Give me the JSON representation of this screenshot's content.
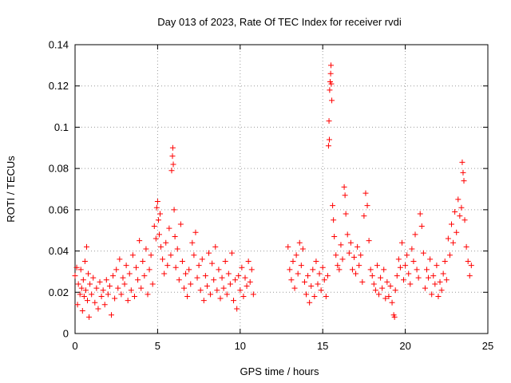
{
  "chart_data": {
    "type": "scatter",
    "title": "Day 013 of 2023, Rate Of TEC Index for receiver rvdi",
    "xlabel": "GPS time / hours",
    "ylabel": "ROTI / TECUs",
    "xlim": [
      0,
      25
    ],
    "ylim": [
      0,
      0.14
    ],
    "xticks": [
      "0",
      "5",
      "10",
      "15",
      "20",
      "25"
    ],
    "yticks": [
      "0",
      "0.02",
      "0.04",
      "0.06",
      "0.08",
      "0.1",
      "0.12",
      "0.14"
    ],
    "grid": true,
    "marker": "+",
    "color": "#ff0000",
    "series": [
      {
        "points": [
          [
            0.0,
            0.028
          ],
          [
            0.1,
            0.032
          ],
          [
            0.15,
            0.014
          ],
          [
            0.2,
            0.024
          ],
          [
            0.3,
            0.019
          ],
          [
            0.35,
            0.031
          ],
          [
            0.4,
            0.022
          ],
          [
            0.45,
            0.011
          ],
          [
            0.5,
            0.026
          ],
          [
            0.55,
            0.018
          ],
          [
            0.6,
            0.035
          ],
          [
            0.65,
            0.021
          ],
          [
            0.7,
            0.042
          ],
          [
            0.75,
            0.016
          ],
          [
            0.8,
            0.029
          ],
          [
            0.85,
            0.008
          ],
          [
            0.9,
            0.024
          ],
          [
            1.0,
            0.019
          ],
          [
            1.1,
            0.027
          ],
          [
            1.2,
            0.015
          ],
          [
            1.3,
            0.022
          ],
          [
            1.4,
            0.012
          ],
          [
            1.5,
            0.025
          ],
          [
            1.6,
            0.018
          ],
          [
            1.7,
            0.021
          ],
          [
            1.8,
            0.014
          ],
          [
            1.9,
            0.026
          ],
          [
            2.0,
            0.019
          ],
          [
            2.1,
            0.023
          ],
          [
            2.2,
            0.009
          ],
          [
            2.3,
            0.028
          ],
          [
            2.4,
            0.017
          ],
          [
            2.5,
            0.031
          ],
          [
            2.6,
            0.022
          ],
          [
            2.7,
            0.036
          ],
          [
            2.8,
            0.019
          ],
          [
            2.9,
            0.027
          ],
          [
            3.0,
            0.024
          ],
          [
            3.1,
            0.033
          ],
          [
            3.2,
            0.016
          ],
          [
            3.3,
            0.029
          ],
          [
            3.4,
            0.021
          ],
          [
            3.5,
            0.038
          ],
          [
            3.6,
            0.018
          ],
          [
            3.7,
            0.032
          ],
          [
            3.8,
            0.026
          ],
          [
            3.9,
            0.045
          ],
          [
            4.0,
            0.022
          ],
          [
            4.1,
            0.035
          ],
          [
            4.2,
            0.028
          ],
          [
            4.3,
            0.041
          ],
          [
            4.4,
            0.019
          ],
          [
            4.5,
            0.031
          ],
          [
            4.6,
            0.038
          ],
          [
            4.7,
            0.024
          ],
          [
            4.8,
            0.052
          ],
          [
            4.9,
            0.046
          ],
          [
            4.95,
            0.061
          ],
          [
            5.0,
            0.064
          ],
          [
            5.05,
            0.055
          ],
          [
            5.1,
            0.048
          ],
          [
            5.15,
            0.058
          ],
          [
            5.2,
            0.042
          ],
          [
            5.3,
            0.036
          ],
          [
            5.4,
            0.029
          ],
          [
            5.5,
            0.044
          ],
          [
            5.6,
            0.033
          ],
          [
            5.7,
            0.051
          ],
          [
            5.8,
            0.038
          ],
          [
            5.85,
            0.079
          ],
          [
            5.9,
            0.086
          ],
          [
            5.92,
            0.09
          ],
          [
            5.95,
            0.082
          ],
          [
            6.0,
            0.06
          ],
          [
            6.05,
            0.047
          ],
          [
            6.1,
            0.032
          ],
          [
            6.2,
            0.041
          ],
          [
            6.3,
            0.026
          ],
          [
            6.4,
            0.053
          ],
          [
            6.5,
            0.035
          ],
          [
            6.6,
            0.022
          ],
          [
            6.7,
            0.029
          ],
          [
            6.8,
            0.018
          ],
          [
            6.9,
            0.031
          ],
          [
            7.0,
            0.024
          ],
          [
            7.1,
            0.044
          ],
          [
            7.2,
            0.038
          ],
          [
            7.3,
            0.049
          ],
          [
            7.4,
            0.027
          ],
          [
            7.5,
            0.033
          ],
          [
            7.6,
            0.021
          ],
          [
            7.7,
            0.036
          ],
          [
            7.8,
            0.016
          ],
          [
            7.9,
            0.028
          ],
          [
            8.0,
            0.023
          ],
          [
            8.1,
            0.039
          ],
          [
            8.2,
            0.019
          ],
          [
            8.3,
            0.034
          ],
          [
            8.4,
            0.026
          ],
          [
            8.5,
            0.042
          ],
          [
            8.6,
            0.021
          ],
          [
            8.7,
            0.031
          ],
          [
            8.8,
            0.017
          ],
          [
            8.9,
            0.027
          ],
          [
            9.0,
            0.022
          ],
          [
            9.1,
            0.035
          ],
          [
            9.2,
            0.019
          ],
          [
            9.3,
            0.029
          ],
          [
            9.4,
            0.024
          ],
          [
            9.5,
            0.039
          ],
          [
            9.6,
            0.016
          ],
          [
            9.7,
            0.026
          ],
          [
            9.8,
            0.012
          ],
          [
            9.9,
            0.028
          ],
          [
            10.0,
            0.021
          ],
          [
            10.1,
            0.032
          ],
          [
            10.2,
            0.018
          ],
          [
            10.3,
            0.027
          ],
          [
            10.4,
            0.023
          ],
          [
            10.5,
            0.035
          ],
          [
            10.6,
            0.025
          ],
          [
            10.7,
            0.031
          ],
          [
            10.8,
            0.019
          ],
          [
            12.9,
            0.042
          ],
          [
            13.0,
            0.031
          ],
          [
            13.1,
            0.026
          ],
          [
            13.2,
            0.035
          ],
          [
            13.3,
            0.022
          ],
          [
            13.4,
            0.038
          ],
          [
            13.5,
            0.029
          ],
          [
            13.6,
            0.044
          ],
          [
            13.7,
            0.033
          ],
          [
            13.8,
            0.041
          ],
          [
            13.9,
            0.025
          ],
          [
            14.0,
            0.019
          ],
          [
            14.1,
            0.028
          ],
          [
            14.2,
            0.015
          ],
          [
            14.3,
            0.023
          ],
          [
            14.4,
            0.031
          ],
          [
            14.5,
            0.018
          ],
          [
            14.6,
            0.035
          ],
          [
            14.7,
            0.024
          ],
          [
            14.8,
            0.029
          ],
          [
            14.9,
            0.021
          ],
          [
            15.0,
            0.032
          ],
          [
            15.1,
            0.026
          ],
          [
            15.2,
            0.018
          ],
          [
            15.3,
            0.028
          ],
          [
            15.35,
            0.091
          ],
          [
            15.38,
            0.103
          ],
          [
            15.4,
            0.094
          ],
          [
            15.42,
            0.118
          ],
          [
            15.45,
            0.122
          ],
          [
            15.48,
            0.126
          ],
          [
            15.5,
            0.13
          ],
          [
            15.52,
            0.121
          ],
          [
            15.55,
            0.113
          ],
          [
            15.6,
            0.062
          ],
          [
            15.65,
            0.055
          ],
          [
            15.7,
            0.047
          ],
          [
            15.8,
            0.038
          ],
          [
            15.9,
            0.033
          ],
          [
            16.0,
            0.031
          ],
          [
            16.1,
            0.043
          ],
          [
            16.2,
            0.036
          ],
          [
            16.3,
            0.071
          ],
          [
            16.35,
            0.067
          ],
          [
            16.4,
            0.058
          ],
          [
            16.5,
            0.048
          ],
          [
            16.6,
            0.039
          ],
          [
            16.7,
            0.044
          ],
          [
            16.8,
            0.031
          ],
          [
            16.9,
            0.037
          ],
          [
            17.0,
            0.029
          ],
          [
            17.1,
            0.042
          ],
          [
            17.2,
            0.033
          ],
          [
            17.3,
            0.038
          ],
          [
            17.4,
            0.025
          ],
          [
            17.5,
            0.057
          ],
          [
            17.6,
            0.068
          ],
          [
            17.7,
            0.062
          ],
          [
            17.8,
            0.045
          ],
          [
            17.9,
            0.031
          ],
          [
            18.0,
            0.028
          ],
          [
            18.1,
            0.024
          ],
          [
            18.2,
            0.021
          ],
          [
            18.3,
            0.033
          ],
          [
            18.4,
            0.019
          ],
          [
            18.5,
            0.027
          ],
          [
            18.6,
            0.022
          ],
          [
            18.7,
            0.031
          ],
          [
            18.8,
            0.017
          ],
          [
            18.9,
            0.025
          ],
          [
            19.0,
            0.018
          ],
          [
            19.1,
            0.023
          ],
          [
            19.2,
            0.015
          ],
          [
            19.3,
            0.009
          ],
          [
            19.35,
            0.008
          ],
          [
            19.4,
            0.021
          ],
          [
            19.5,
            0.028
          ],
          [
            19.6,
            0.036
          ],
          [
            19.7,
            0.032
          ],
          [
            19.8,
            0.044
          ],
          [
            19.9,
            0.026
          ],
          [
            20.0,
            0.033
          ],
          [
            20.1,
            0.038
          ],
          [
            20.2,
            0.029
          ],
          [
            20.3,
            0.024
          ],
          [
            20.4,
            0.041
          ],
          [
            20.5,
            0.035
          ],
          [
            20.6,
            0.048
          ],
          [
            20.7,
            0.031
          ],
          [
            20.8,
            0.027
          ],
          [
            20.9,
            0.058
          ],
          [
            21.0,
            0.052
          ],
          [
            21.1,
            0.039
          ],
          [
            21.2,
            0.022
          ],
          [
            21.3,
            0.031
          ],
          [
            21.4,
            0.027
          ],
          [
            21.5,
            0.036
          ],
          [
            21.6,
            0.019
          ],
          [
            21.7,
            0.028
          ],
          [
            21.8,
            0.024
          ],
          [
            21.9,
            0.033
          ],
          [
            22.0,
            0.018
          ],
          [
            22.1,
            0.025
          ],
          [
            22.2,
            0.021
          ],
          [
            22.3,
            0.029
          ],
          [
            22.4,
            0.035
          ],
          [
            22.5,
            0.026
          ],
          [
            22.6,
            0.046
          ],
          [
            22.7,
            0.038
          ],
          [
            22.8,
            0.053
          ],
          [
            22.9,
            0.044
          ],
          [
            23.0,
            0.059
          ],
          [
            23.1,
            0.049
          ],
          [
            23.2,
            0.065
          ],
          [
            23.3,
            0.057
          ],
          [
            23.4,
            0.061
          ],
          [
            23.45,
            0.083
          ],
          [
            23.5,
            0.078
          ],
          [
            23.55,
            0.074
          ],
          [
            23.6,
            0.055
          ],
          [
            23.7,
            0.042
          ],
          [
            23.8,
            0.035
          ],
          [
            23.9,
            0.028
          ],
          [
            24.0,
            0.033
          ]
        ]
      }
    ]
  }
}
